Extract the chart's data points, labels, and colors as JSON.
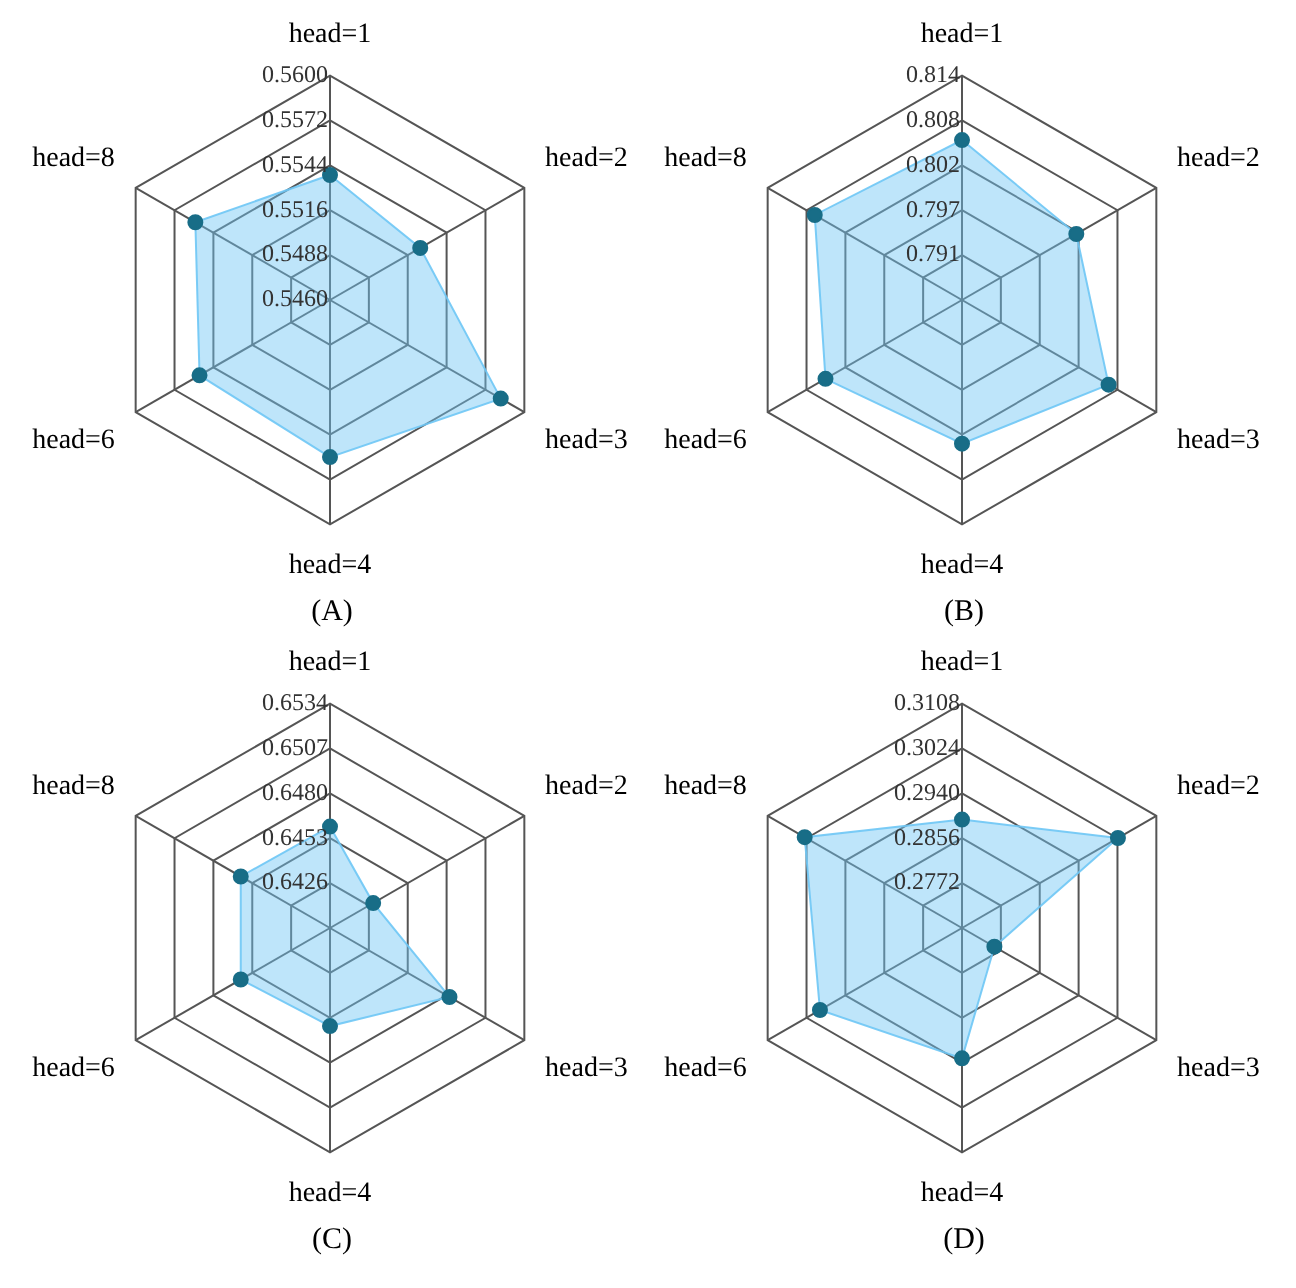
{
  "chart_data": [
    {
      "type": "radar",
      "title": "(A)",
      "categories": [
        "head=1",
        "head=2",
        "head=3",
        "head=4",
        "head=6",
        "head=8"
      ],
      "ylim": [
        0.546,
        0.56
      ],
      "yticks": [
        {
          "value": 0.546,
          "label": "0.5460"
        },
        {
          "value": 0.5488,
          "label": "0.5488"
        },
        {
          "value": 0.5516,
          "label": "0.5516"
        },
        {
          "value": 0.5544,
          "label": "0.5544"
        },
        {
          "value": 0.5572,
          "label": "0.5572"
        },
        {
          "value": 0.56,
          "label": "0.5600"
        }
      ],
      "marker": "circle",
      "grid": true,
      "legend": false,
      "series": [
        {
          "color": "#6ec6f5",
          "values": [
            0.5538,
            0.5525,
            0.5583,
            0.5558,
            0.5554,
            0.5557
          ]
        }
      ]
    },
    {
      "type": "radar",
      "title": "(B)",
      "categories": [
        "head=1",
        "head=2",
        "head=3",
        "head=4",
        "head=6",
        "head=8"
      ],
      "ylim": [
        0.7851,
        0.814
      ],
      "yticks": [
        {
          "value": 0.79088,
          "label": "0.791"
        },
        {
          "value": 0.79666,
          "label": "0.797"
        },
        {
          "value": 0.80244,
          "label": "0.802"
        },
        {
          "value": 0.80822,
          "label": "0.808"
        },
        {
          "value": 0.814,
          "label": "0.814"
        }
      ],
      "marker": "circle",
      "grid": true,
      "legend": false,
      "series": [
        {
          "color": "#6ec6f5",
          "values": [
            0.8057,
            0.8021,
            0.8069,
            0.8036,
            0.8054,
            0.807
          ]
        }
      ]
    },
    {
      "type": "radar",
      "title": "(C)",
      "categories": [
        "head=1",
        "head=2",
        "head=3",
        "head=4",
        "head=6",
        "head=8"
      ],
      "ylim": [
        0.6399,
        0.6534
      ],
      "yticks": [
        {
          "value": 0.6426,
          "label": "0.6426"
        },
        {
          "value": 0.6453,
          "label": "0.6453"
        },
        {
          "value": 0.648,
          "label": "0.6480"
        },
        {
          "value": 0.6507,
          "label": "0.6507"
        },
        {
          "value": 0.6534,
          "label": "0.6534"
        }
      ],
      "marker": "circle",
      "grid": true,
      "legend": false,
      "series": [
        {
          "color": "#6ec6f5",
          "values": [
            0.646,
            0.6429,
            0.6482,
            0.6458,
            0.6461,
            0.6461
          ]
        }
      ]
    },
    {
      "type": "radar",
      "title": "(D)",
      "categories": [
        "head=1",
        "head=2",
        "head=3",
        "head=4",
        "head=6",
        "head=8"
      ],
      "ylim": [
        0.2688,
        0.3108
      ],
      "yticks": [
        {
          "value": 0.2772,
          "label": "0.2772"
        },
        {
          "value": 0.2856,
          "label": "0.2856"
        },
        {
          "value": 0.294,
          "label": "0.2940"
        },
        {
          "value": 0.3024,
          "label": "0.3024"
        },
        {
          "value": 0.3108,
          "label": "0.3108"
        }
      ],
      "marker": "circle",
      "grid": true,
      "legend": false,
      "series": [
        {
          "color": "#6ec6f5",
          "values": [
            0.2891,
            0.3025,
            0.2758,
            0.2932,
            0.2995,
            0.3028
          ]
        }
      ]
    }
  ]
}
